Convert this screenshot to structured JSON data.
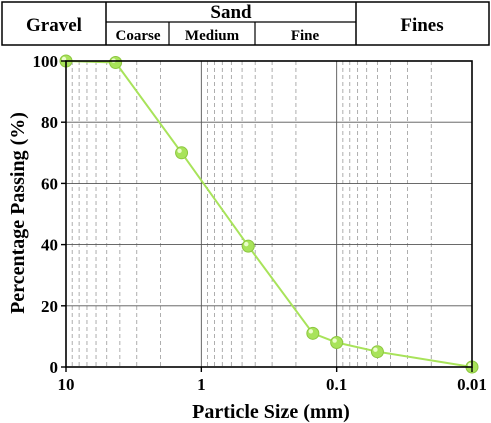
{
  "header": {
    "gravel": "Gravel",
    "sand": "Sand",
    "coarse": "Coarse",
    "medium": "Medium",
    "fine": "Fine",
    "fines": "Fines"
  },
  "chart_data": {
    "type": "line",
    "title": "",
    "xlabel": "Particle Size (mm)",
    "ylabel": "Percentage Passing (%)",
    "x_scale": "log",
    "x_reversed": true,
    "xlim": [
      10,
      0.01
    ],
    "ylim": [
      0,
      100
    ],
    "x_ticks": [
      10,
      1,
      0.1,
      0.01
    ],
    "x_tick_labels": [
      "10",
      "1",
      "0.1",
      "0.01"
    ],
    "y_ticks": [
      0,
      20,
      40,
      60,
      80,
      100
    ],
    "y_tick_labels": [
      "0",
      "20",
      "40",
      "60",
      "80",
      "100"
    ],
    "grid": true,
    "series": [
      {
        "color": "#a8e35a",
        "x": [
          10,
          4.3,
          1.4,
          0.45,
          0.15,
          0.1,
          0.05,
          0.01
        ],
        "y": [
          100,
          99.5,
          70,
          39.5,
          11,
          8,
          5,
          0
        ]
      }
    ]
  }
}
